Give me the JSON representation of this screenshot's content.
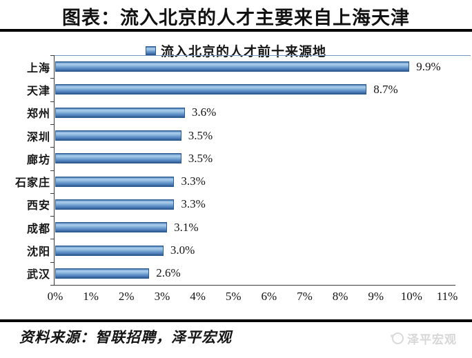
{
  "page": {
    "title": "图表：流入北京的人才主要来自上海天津",
    "source_label": "资料来源：智联招聘，泽平宏观",
    "watermark": "泽平宏观"
  },
  "chart_data": {
    "type": "bar",
    "orientation": "horizontal",
    "title": "流入北京的人才前十来源地",
    "legend": "流入北京的人才前十来源地",
    "legend_position": "top-center",
    "categories": [
      "上海",
      "天津",
      "郑州",
      "深圳",
      "廊坊",
      "石家庄",
      "西安",
      "成都",
      "沈阳",
      "武汉"
    ],
    "values": [
      9.9,
      8.7,
      3.6,
      3.5,
      3.5,
      3.3,
      3.3,
      3.1,
      3.0,
      2.6
    ],
    "value_labels": [
      "9.9%",
      "8.7%",
      "3.6%",
      "3.5%",
      "3.5%",
      "3.3%",
      "3.3%",
      "3.1%",
      "3.0%",
      "2.6%"
    ],
    "xlim": [
      0,
      11
    ],
    "x_tick_labels": [
      "0%",
      "1%",
      "2%",
      "3%",
      "4%",
      "5%",
      "6%",
      "7%",
      "8%",
      "9%",
      "10%",
      "11%"
    ],
    "grid": false,
    "bar_color": "#4f81bd",
    "bar_gradient_light": "#abceea",
    "bar_gradient_dark": "#2e598c",
    "bar_border_color": "#2d5a8e",
    "axis_color": "#3a3a3a"
  }
}
